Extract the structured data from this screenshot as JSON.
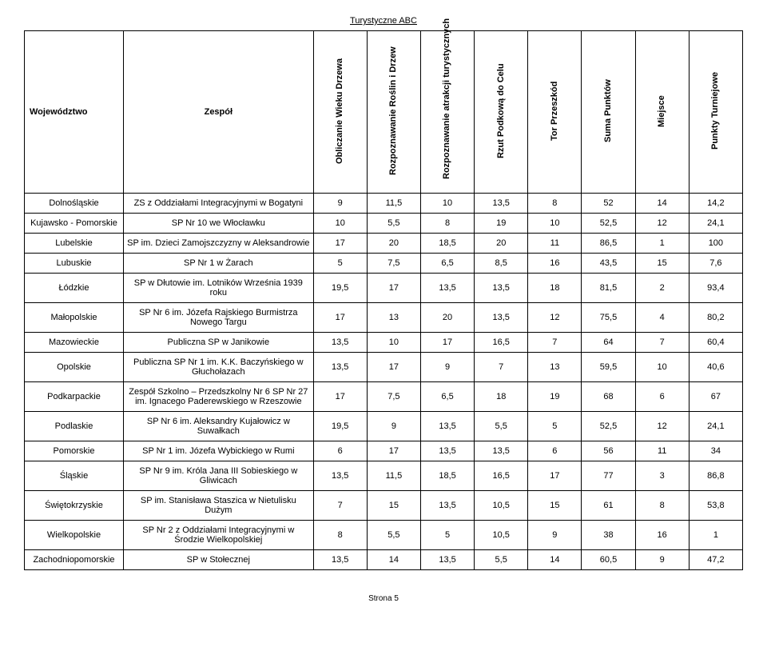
{
  "page_title": "Turystyczne ABC",
  "footer": "Strona 5",
  "columns": {
    "woj": "Województwo",
    "zespol": "Zespół",
    "c1": "Obliczanie Wieku Drzewa",
    "c2": "Rozpoznawanie Roślin i Drzew",
    "c3": "Rozpoznawanie atrakcji turystycznych",
    "c4": "Rzut Podkową do Celu",
    "c5": "Tor Przeszkód",
    "c6": "Suma Punktów",
    "c7": "Miejsce",
    "c8": "Punkty Turniejowe"
  },
  "rows": [
    {
      "woj": "Dolnośląskie",
      "zespol": "ZS z Oddziałami Integracyjnymi w Bogatyni",
      "v": [
        "9",
        "11,5",
        "10",
        "13,5",
        "8",
        "52",
        "14",
        "14,2"
      ]
    },
    {
      "woj": "Kujawsko - Pomorskie",
      "zespol": "SP Nr 10 we Włocławku",
      "v": [
        "10",
        "5,5",
        "8",
        "19",
        "10",
        "52,5",
        "12",
        "24,1"
      ]
    },
    {
      "woj": "Lubelskie",
      "zespol": "SP im. Dzieci Zamojszczyzny w Aleksandrowie",
      "v": [
        "17",
        "20",
        "18,5",
        "20",
        "11",
        "86,5",
        "1",
        "100"
      ]
    },
    {
      "woj": "Lubuskie",
      "zespol": "SP Nr 1 w Żarach",
      "v": [
        "5",
        "7,5",
        "6,5",
        "8,5",
        "16",
        "43,5",
        "15",
        "7,6"
      ]
    },
    {
      "woj": "Łódzkie",
      "zespol": "SP w Dłutowie im. Lotników Września 1939 roku",
      "v": [
        "19,5",
        "17",
        "13,5",
        "13,5",
        "18",
        "81,5",
        "2",
        "93,4"
      ]
    },
    {
      "woj": "Małopolskie",
      "zespol": "SP Nr 6 im. Józefa Rajskiego Burmistrza Nowego Targu",
      "v": [
        "17",
        "13",
        "20",
        "13,5",
        "12",
        "75,5",
        "4",
        "80,2"
      ]
    },
    {
      "woj": "Mazowieckie",
      "zespol": "Publiczna SP w Janikowie",
      "v": [
        "13,5",
        "10",
        "17",
        "16,5",
        "7",
        "64",
        "7",
        "60,4"
      ]
    },
    {
      "woj": "Opolskie",
      "zespol": "Publiczna SP Nr 1 im. K.K. Baczyńskiego w Głuchołazach",
      "v": [
        "13,5",
        "17",
        "9",
        "7",
        "13",
        "59,5",
        "10",
        "40,6"
      ]
    },
    {
      "woj": "Podkarpackie",
      "zespol": "Zespół Szkolno – Przedszkolny Nr 6 SP Nr 27 im. Ignacego Paderewskiego w Rzeszowie",
      "v": [
        "17",
        "7,5",
        "6,5",
        "18",
        "19",
        "68",
        "6",
        "67"
      ]
    },
    {
      "woj": "Podlaskie",
      "zespol": "SP Nr 6 im. Aleksandry Kujałowicz w Suwałkach",
      "v": [
        "19,5",
        "9",
        "13,5",
        "5,5",
        "5",
        "52,5",
        "12",
        "24,1"
      ]
    },
    {
      "woj": "Pomorskie",
      "zespol": "SP Nr 1 im. Józefa Wybickiego w Rumi",
      "v": [
        "6",
        "17",
        "13,5",
        "13,5",
        "6",
        "56",
        "11",
        "34"
      ]
    },
    {
      "woj": "Śląskie",
      "zespol": "SP Nr 9 im. Króla Jana III Sobieskiego w Gliwicach",
      "v": [
        "13,5",
        "11,5",
        "18,5",
        "16,5",
        "17",
        "77",
        "3",
        "86,8"
      ]
    },
    {
      "woj": "Świętokrzyskie",
      "zespol": "SP im. Stanisława Staszica w Nietulisku Dużym",
      "v": [
        "7",
        "15",
        "13,5",
        "10,5",
        "15",
        "61",
        "8",
        "53,8"
      ]
    },
    {
      "woj": "Wielkopolskie",
      "zespol": "SP Nr 2 z Oddziałami Integracyjnymi w Środzie Wielkopolskiej",
      "v": [
        "8",
        "5,5",
        "5",
        "10,5",
        "9",
        "38",
        "16",
        "1"
      ]
    },
    {
      "woj": "Zachodniopomorskie",
      "zespol": "SP w Stołecznej",
      "v": [
        "13,5",
        "14",
        "13,5",
        "5,5",
        "14",
        "60,5",
        "9",
        "47,2"
      ]
    }
  ]
}
